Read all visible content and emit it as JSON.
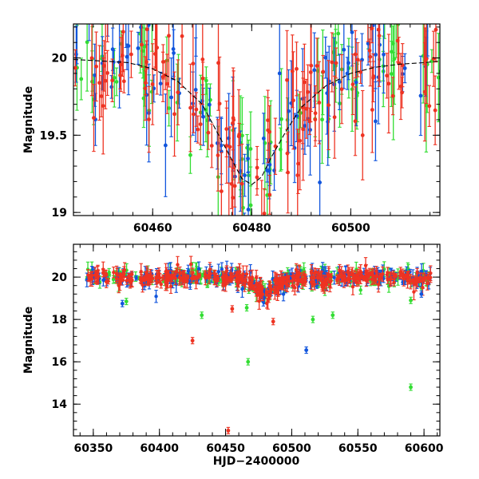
{
  "colors": {
    "green": "#33dd33",
    "blue": "#1155dd",
    "red": "#ee3322",
    "model": "#000000"
  },
  "chart_data": [
    {
      "type": "scatter",
      "panel": "top",
      "xlabel": "",
      "ylabel": "Magnitude",
      "xlim": [
        60444,
        60518
      ],
      "ylim": [
        20.22,
        18.98
      ],
      "y_inverted": true,
      "xticks": [
        60460,
        60480,
        60500
      ],
      "yticks": [
        19,
        19.5,
        20
      ],
      "ytick_labels": [
        "19",
        "19.5",
        "20"
      ],
      "xtick_labels": [
        "60460",
        "60480",
        "60500"
      ],
      "model_curve": {
        "x": [
          60444,
          60450,
          60455,
          60460,
          60465,
          60470,
          60473,
          60476,
          60478,
          60480,
          60482,
          60484,
          60487,
          60490,
          60495,
          60500,
          60505,
          60510,
          60515,
          60518
        ],
        "y": [
          19.99,
          19.98,
          19.97,
          19.93,
          19.85,
          19.7,
          19.52,
          19.34,
          19.22,
          19.18,
          19.23,
          19.36,
          19.53,
          19.68,
          19.82,
          19.9,
          19.94,
          19.96,
          19.97,
          19.98
        ]
      },
      "note": "dense ZTF-like photometry; green/blue/red series clustered around ~19.9 mag with a bump peaking near HJD 60480"
    },
    {
      "type": "scatter",
      "panel": "bottom",
      "xlabel": "HJD−2400000",
      "ylabel": "Magnitude",
      "xlim": [
        60335,
        60612
      ],
      "ylim": [
        21.55,
        12.5
      ],
      "y_inverted": true,
      "xticks": [
        60350,
        60400,
        60450,
        60500,
        60550,
        60600
      ],
      "yticks": [
        14,
        16,
        18,
        20
      ],
      "xtick_labels": [
        "60350",
        "60400",
        "60450",
        "60500",
        "60550",
        "60600"
      ],
      "ytick_labels": [
        "14",
        "16",
        "18",
        "20"
      ],
      "outliers": [
        {
          "series": "red",
          "x": 60452,
          "y": 12.75
        },
        {
          "series": "green",
          "x": 60590,
          "y": 14.8
        },
        {
          "series": "green",
          "x": 60467,
          "y": 16.0
        },
        {
          "series": "blue",
          "x": 60511,
          "y": 16.55
        },
        {
          "series": "red",
          "x": 60425,
          "y": 17.0
        },
        {
          "series": "red",
          "x": 60486,
          "y": 17.9
        },
        {
          "series": "green",
          "x": 60432,
          "y": 18.2
        },
        {
          "series": "green",
          "x": 60516,
          "y": 18.0
        },
        {
          "series": "green",
          "x": 60531,
          "y": 18.2
        },
        {
          "series": "red",
          "x": 60455,
          "y": 18.5
        },
        {
          "series": "blue",
          "x": 60372,
          "y": 18.75
        },
        {
          "series": "green",
          "x": 60375,
          "y": 18.85
        },
        {
          "series": "green",
          "x": 60590,
          "y": 18.9
        },
        {
          "series": "green",
          "x": 60466,
          "y": 18.55
        },
        {
          "series": "blue",
          "x": 60598,
          "y": 19.2
        }
      ]
    }
  ]
}
